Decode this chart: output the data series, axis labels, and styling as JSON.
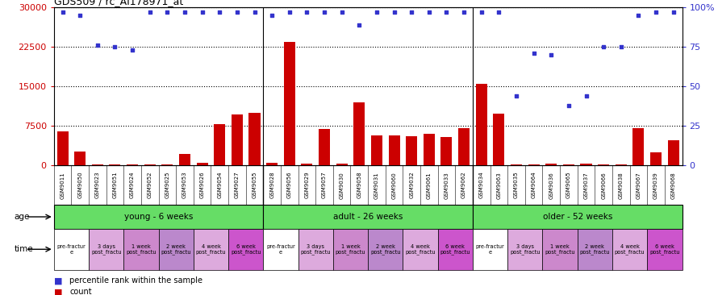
{
  "title": "GDS509 / rc_AI178971_at",
  "samples": [
    "GSM9011",
    "GSM9050",
    "GSM9023",
    "GSM9051",
    "GSM9024",
    "GSM9052",
    "GSM9025",
    "GSM9053",
    "GSM9026",
    "GSM9054",
    "GSM9027",
    "GSM9055",
    "GSM9028",
    "GSM9056",
    "GSM9029",
    "GSM9057",
    "GSM9030",
    "GSM9058",
    "GSM9031",
    "GSM9060",
    "GSM9032",
    "GSM9061",
    "GSM9033",
    "GSM9062",
    "GSM9034",
    "GSM9063",
    "GSM9035",
    "GSM9064",
    "GSM9036",
    "GSM9065",
    "GSM9037",
    "GSM9066",
    "GSM9038",
    "GSM9067",
    "GSM9039",
    "GSM9068"
  ],
  "counts": [
    6500,
    2600,
    150,
    80,
    150,
    80,
    80,
    2200,
    400,
    7800,
    9600,
    10000,
    400,
    23500,
    250,
    6900,
    250,
    12000,
    5700,
    5600,
    5500,
    5900,
    5300,
    7100,
    15500,
    9800,
    150,
    150,
    250,
    80,
    250,
    180,
    80,
    7000,
    2500,
    4800
  ],
  "percentile_ranks": [
    97,
    95,
    76,
    75,
    73,
    97,
    97,
    97,
    97,
    97,
    97,
    97,
    95,
    97,
    97,
    97,
    97,
    89,
    97,
    97,
    97,
    97,
    97,
    97,
    97,
    97,
    44,
    71,
    70,
    38,
    44,
    75,
    75,
    95,
    97,
    97
  ],
  "ylim_left": [
    0,
    30000
  ],
  "ylim_right": [
    0,
    100
  ],
  "yticks_left": [
    0,
    7500,
    15000,
    22500,
    30000
  ],
  "yticks_right": [
    0,
    25,
    50,
    75,
    100
  ],
  "background_color": "#ffffff",
  "plot_bg_color": "#ffffff",
  "bar_color": "#cc0000",
  "dot_color": "#3333cc",
  "grid_color": "#000000",
  "tick_label_color_left": "#cc0000",
  "tick_label_color_right": "#3333cc",
  "age_group_labels": [
    "young - 6 weeks",
    "adult - 26 weeks",
    "older - 52 weeks"
  ],
  "age_group_color": "#66dd66",
  "age_group_ranges": [
    [
      0,
      12
    ],
    [
      12,
      24
    ],
    [
      24,
      36
    ]
  ],
  "time_period_labels": [
    "pre-fractur\ne",
    "3 days\npost_fractu",
    "1 week\npost_fractu",
    "2 week\npost_fractu",
    "4 week\npost_fractu",
    "6 week\npost_fractu"
  ],
  "time_period_colors": [
    "#ffffff",
    "#ddaadd",
    "#cc88cc",
    "#bb88cc",
    "#ddaadd",
    "#cc55cc"
  ],
  "n_groups": 3,
  "n_time": 6,
  "samples_per_time": 2,
  "separator_color": "#000000",
  "legend_items": [
    {
      "color": "#cc0000",
      "label": "count"
    },
    {
      "color": "#3333cc",
      "label": "percentile rank within the sample"
    }
  ]
}
